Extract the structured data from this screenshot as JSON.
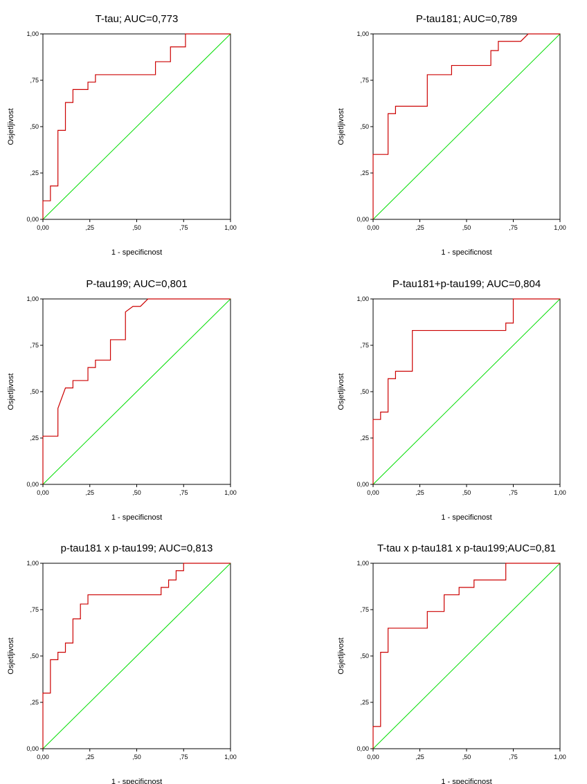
{
  "chart_data": [
    {
      "type": "line",
      "title": "T-tau; AUC=0,773",
      "xlabel": "1 - specificnost",
      "ylabel": "Osjetljivost",
      "xlim": [
        0,
        1
      ],
      "ylim": [
        0,
        1
      ],
      "xticks": [
        "0,00",
        ",25",
        ",50",
        ",75",
        "1,00"
      ],
      "yticks": [
        "0,00",
        ",25",
        ",50",
        ",75",
        "1,00"
      ],
      "colors": {
        "roc": "#cc0000",
        "reference": "#00dd00"
      },
      "roc": [
        [
          0,
          0
        ],
        [
          0,
          0.1
        ],
        [
          0.04,
          0.1
        ],
        [
          0.04,
          0.18
        ],
        [
          0.08,
          0.18
        ],
        [
          0.08,
          0.48
        ],
        [
          0.12,
          0.48
        ],
        [
          0.12,
          0.63
        ],
        [
          0.16,
          0.63
        ],
        [
          0.16,
          0.7
        ],
        [
          0.24,
          0.7
        ],
        [
          0.24,
          0.74
        ],
        [
          0.28,
          0.74
        ],
        [
          0.28,
          0.78
        ],
        [
          0.6,
          0.78
        ],
        [
          0.6,
          0.85
        ],
        [
          0.68,
          0.85
        ],
        [
          0.68,
          0.93
        ],
        [
          0.76,
          0.93
        ],
        [
          0.76,
          1.0
        ],
        [
          1.0,
          1.0
        ]
      ]
    },
    {
      "type": "line",
      "title": "P-tau181; AUC=0,789",
      "xlabel": "1 - specificnost",
      "ylabel": "Osjetljivost",
      "xlim": [
        0,
        1
      ],
      "ylim": [
        0,
        1
      ],
      "xticks": [
        "0,00",
        ",25",
        ",50",
        ",75",
        "1,00"
      ],
      "yticks": [
        "0,00",
        ",25",
        ",50",
        ",75",
        "1,00"
      ],
      "colors": {
        "roc": "#cc0000",
        "reference": "#00dd00"
      },
      "roc": [
        [
          0,
          0
        ],
        [
          0,
          0.35
        ],
        [
          0.08,
          0.35
        ],
        [
          0.08,
          0.57
        ],
        [
          0.12,
          0.57
        ],
        [
          0.12,
          0.61
        ],
        [
          0.29,
          0.61
        ],
        [
          0.29,
          0.78
        ],
        [
          0.42,
          0.78
        ],
        [
          0.42,
          0.83
        ],
        [
          0.63,
          0.83
        ],
        [
          0.63,
          0.91
        ],
        [
          0.67,
          0.91
        ],
        [
          0.67,
          0.96
        ],
        [
          0.79,
          0.96
        ],
        [
          0.83,
          1.0
        ],
        [
          1.0,
          1.0
        ]
      ]
    },
    {
      "type": "line",
      "title": "P-tau199; AUC=0,801",
      "xlabel": "1 - specificnost",
      "ylabel": "Osjetljivost",
      "xlim": [
        0,
        1
      ],
      "ylim": [
        0,
        1
      ],
      "xticks": [
        "0,00",
        ",25",
        ",50",
        ",75",
        "1,00"
      ],
      "yticks": [
        "0,00",
        ",25",
        ",50",
        ",75",
        "1,00"
      ],
      "colors": {
        "roc": "#cc0000",
        "reference": "#00dd00"
      },
      "roc": [
        [
          0,
          0
        ],
        [
          0,
          0.26
        ],
        [
          0.08,
          0.26
        ],
        [
          0.08,
          0.41
        ],
        [
          0.12,
          0.52
        ],
        [
          0.16,
          0.52
        ],
        [
          0.16,
          0.56
        ],
        [
          0.24,
          0.56
        ],
        [
          0.24,
          0.63
        ],
        [
          0.28,
          0.63
        ],
        [
          0.28,
          0.67
        ],
        [
          0.36,
          0.67
        ],
        [
          0.36,
          0.78
        ],
        [
          0.44,
          0.78
        ],
        [
          0.44,
          0.93
        ],
        [
          0.48,
          0.96
        ],
        [
          0.52,
          0.96
        ],
        [
          0.56,
          1.0
        ],
        [
          1.0,
          1.0
        ]
      ]
    },
    {
      "type": "line",
      "title": "P-tau181+p-tau199; AUC=0,804",
      "xlabel": "1 - specificnost",
      "ylabel": "Osjetljivost",
      "xlim": [
        0,
        1
      ],
      "ylim": [
        0,
        1
      ],
      "xticks": [
        "0,00",
        ",25",
        ",50",
        ",75",
        "1,00"
      ],
      "yticks": [
        "0,00",
        ",25",
        ",50",
        ",75",
        "1,00"
      ],
      "colors": {
        "roc": "#cc0000",
        "reference": "#00dd00"
      },
      "roc": [
        [
          0,
          0
        ],
        [
          0,
          0.35
        ],
        [
          0.04,
          0.35
        ],
        [
          0.04,
          0.39
        ],
        [
          0.08,
          0.39
        ],
        [
          0.08,
          0.57
        ],
        [
          0.12,
          0.57
        ],
        [
          0.12,
          0.61
        ],
        [
          0.21,
          0.61
        ],
        [
          0.21,
          0.83
        ],
        [
          0.71,
          0.83
        ],
        [
          0.71,
          0.87
        ],
        [
          0.75,
          0.87
        ],
        [
          0.75,
          1.0
        ],
        [
          1.0,
          1.0
        ]
      ]
    },
    {
      "type": "line",
      "title": "p-tau181 x p-tau199; AUC=0,813",
      "xlabel": "1 - specificnost",
      "ylabel": "Osjetljivost",
      "xlim": [
        0,
        1
      ],
      "ylim": [
        0,
        1
      ],
      "xticks": [
        "0,00",
        ",25",
        ",50",
        ",75",
        "1,00"
      ],
      "yticks": [
        "0,00",
        ",25",
        ",50",
        ",75",
        "1,00"
      ],
      "colors": {
        "roc": "#cc0000",
        "reference": "#00dd00"
      },
      "roc": [
        [
          0,
          0
        ],
        [
          0,
          0.3
        ],
        [
          0.04,
          0.3
        ],
        [
          0.04,
          0.48
        ],
        [
          0.08,
          0.48
        ],
        [
          0.08,
          0.52
        ],
        [
          0.12,
          0.52
        ],
        [
          0.12,
          0.57
        ],
        [
          0.16,
          0.57
        ],
        [
          0.16,
          0.7
        ],
        [
          0.2,
          0.7
        ],
        [
          0.2,
          0.78
        ],
        [
          0.24,
          0.78
        ],
        [
          0.24,
          0.83
        ],
        [
          0.63,
          0.83
        ],
        [
          0.63,
          0.87
        ],
        [
          0.67,
          0.87
        ],
        [
          0.67,
          0.91
        ],
        [
          0.71,
          0.91
        ],
        [
          0.71,
          0.96
        ],
        [
          0.75,
          0.96
        ],
        [
          0.75,
          1.0
        ],
        [
          1.0,
          1.0
        ]
      ]
    },
    {
      "type": "line",
      "title": "T-tau x p-tau181 x p-tau199;AUC=0,81",
      "xlabel": "1 - specificnost",
      "ylabel": "Osjetljivost",
      "xlim": [
        0,
        1
      ],
      "ylim": [
        0,
        1
      ],
      "xticks": [
        "0,00",
        ",25",
        ",50",
        ",75",
        "1,00"
      ],
      "yticks": [
        "0,00",
        ",25",
        ",50",
        ",75",
        "1,00"
      ],
      "colors": {
        "roc": "#cc0000",
        "reference": "#00dd00"
      },
      "roc": [
        [
          0,
          0
        ],
        [
          0,
          0.12
        ],
        [
          0.04,
          0.12
        ],
        [
          0.04,
          0.52
        ],
        [
          0.08,
          0.52
        ],
        [
          0.08,
          0.65
        ],
        [
          0.29,
          0.65
        ],
        [
          0.29,
          0.74
        ],
        [
          0.38,
          0.74
        ],
        [
          0.38,
          0.83
        ],
        [
          0.46,
          0.83
        ],
        [
          0.46,
          0.87
        ],
        [
          0.54,
          0.87
        ],
        [
          0.54,
          0.91
        ],
        [
          0.71,
          0.91
        ],
        [
          0.71,
          1.0
        ],
        [
          1.0,
          1.0
        ]
      ]
    }
  ]
}
